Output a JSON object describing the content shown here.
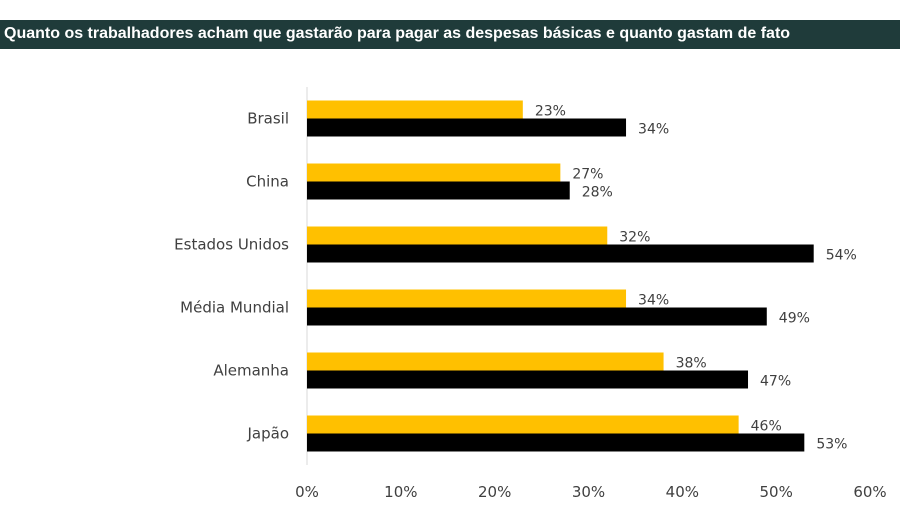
{
  "title": "Quanto os trabalhadores acham que gastarão para pagar as despesas básicas e quanto gastam de fato",
  "colors": {
    "title_bg": "#1f3b3a",
    "series_expected": "#ffc000",
    "series_actual": "#000000",
    "axis": "#d9d9d9",
    "text": "#404040"
  },
  "chart_data": {
    "type": "bar",
    "orientation": "horizontal",
    "categories": [
      "Brasil",
      "China",
      "Estados Unidos",
      "Média Mundial",
      "Alemanha",
      "Japão"
    ],
    "series": [
      {
        "values": [
          23,
          27,
          32,
          34,
          38,
          46
        ],
        "color": "#ffc000"
      },
      {
        "values": [
          34,
          28,
          54,
          49,
          47,
          53
        ],
        "color": "#000000"
      }
    ],
    "value_labels": [
      [
        "23%",
        "27%",
        "32%",
        "34%",
        "38%",
        "46%"
      ],
      [
        "34%",
        "28%",
        "54%",
        "49%",
        "47%",
        "53%"
      ]
    ],
    "xlim": [
      0,
      60
    ],
    "x_ticks": [
      0,
      10,
      20,
      30,
      40,
      50,
      60
    ],
    "x_tick_labels": [
      "0%",
      "10%",
      "20%",
      "30%",
      "40%",
      "50%",
      "60%"
    ],
    "grid": false,
    "legend": false
  }
}
